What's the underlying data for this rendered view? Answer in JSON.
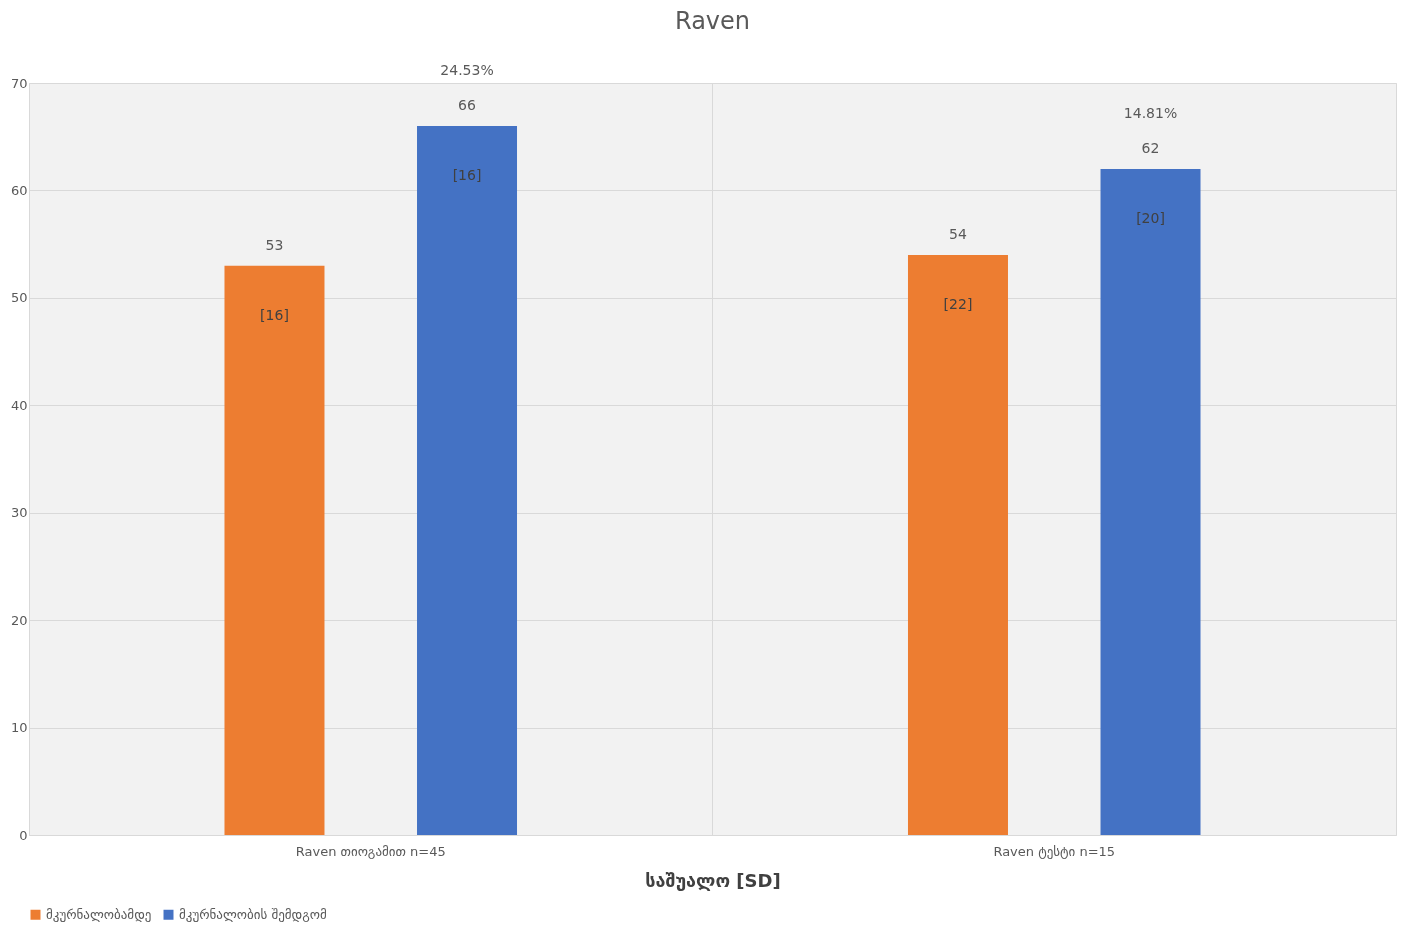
{
  "chart_data": {
    "type": "bar",
    "title": "Raven",
    "xlabel": "საშუალო [SD]",
    "categories": [
      "Raven თიოგამით n=45",
      "Raven ტესტი n=15"
    ],
    "series": [
      {
        "name": "მკურნალობამდე",
        "color": "#ed7d31",
        "values": [
          53,
          54
        ]
      },
      {
        "name": "მკურნალობის შემდგომ",
        "color": "#4472c4",
        "values": [
          66,
          62
        ]
      }
    ],
    "data_labels": true,
    "annotations": [
      "[16]",
      "[22]",
      "[16]",
      "[20]",
      "24.53%",
      "14.81%"
    ],
    "ylim": [
      0,
      70
    ],
    "yticks": [
      0,
      10,
      20,
      30,
      40,
      50,
      60,
      70
    ],
    "grid": true,
    "legend": "bottom"
  }
}
